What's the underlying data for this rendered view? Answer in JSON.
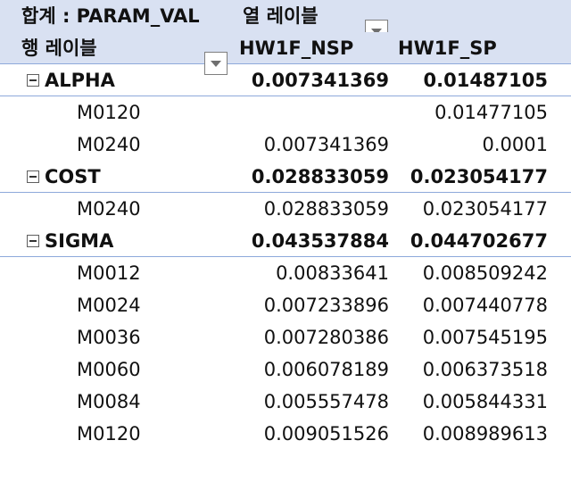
{
  "header": {
    "values_label": "합계 : PARAM_VAL",
    "col_labels": "열 레이블",
    "row_labels": "행 레이블",
    "col1": "HW1F_NSP",
    "col2": "HW1F_SP"
  },
  "groups": [
    {
      "name": "ALPHA",
      "nsp": "0.007341369",
      "sp": "0.01487105",
      "items": [
        {
          "name": "M0120",
          "nsp": "",
          "sp": "0.01477105"
        },
        {
          "name": "M0240",
          "nsp": "0.007341369",
          "sp": "0.0001"
        }
      ]
    },
    {
      "name": "COST",
      "nsp": "0.028833059",
      "sp": "0.023054177",
      "items": [
        {
          "name": "M0240",
          "nsp": "0.028833059",
          "sp": "0.023054177"
        }
      ]
    },
    {
      "name": "SIGMA",
      "nsp": "0.043537884",
      "sp": "0.044702677",
      "items": [
        {
          "name": "M0012",
          "nsp": "0.00833641",
          "sp": "0.008509242"
        },
        {
          "name": "M0024",
          "nsp": "0.007233896",
          "sp": "0.007440778"
        },
        {
          "name": "M0036",
          "nsp": "0.007280386",
          "sp": "0.007545195"
        },
        {
          "name": "M0060",
          "nsp": "0.006078189",
          "sp": "0.006373518"
        },
        {
          "name": "M0084",
          "nsp": "0.005557478",
          "sp": "0.005844331"
        },
        {
          "name": "M0120",
          "nsp": "0.009051526",
          "sp": "0.008989613"
        }
      ]
    }
  ]
}
